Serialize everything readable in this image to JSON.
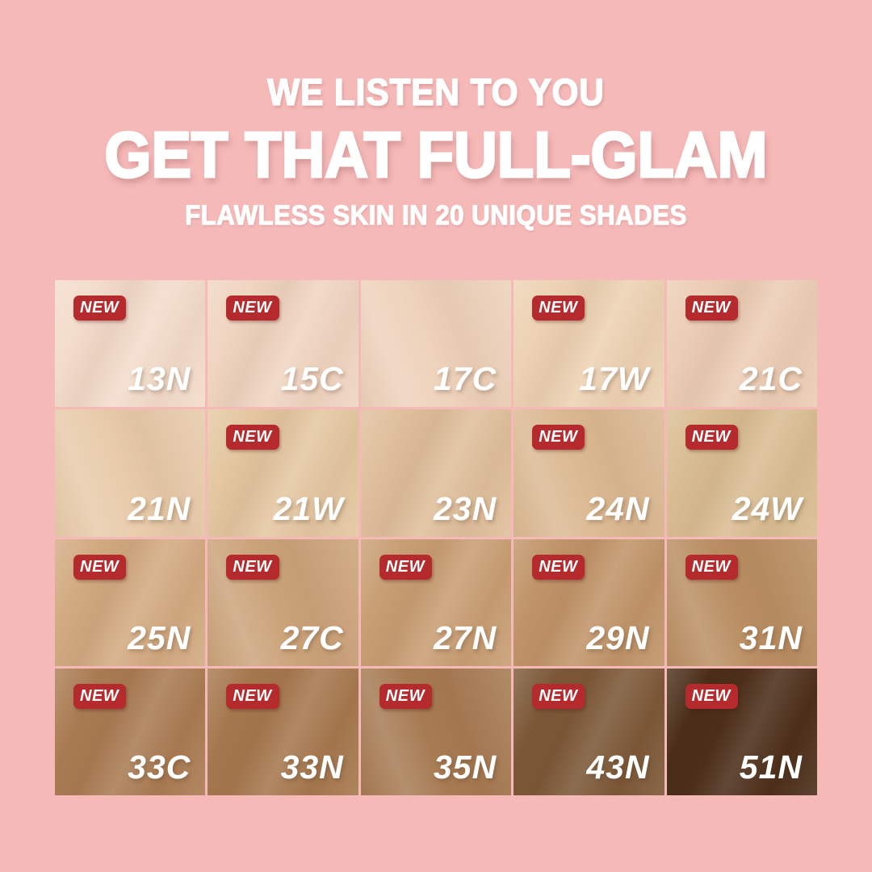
{
  "page": {
    "background_color": "#f5b9b8"
  },
  "header": {
    "line1": "WE LISTEN TO YOU",
    "line2": "GET THAT FULL-GLAM",
    "line3": "FLAWLESS SKIN IN 20 UNIQUE SHADES",
    "text_color": "#ffffff"
  },
  "badge": {
    "label": "NEW",
    "background_color": "#b52a2c",
    "text_color": "#ffffff"
  },
  "shade_grid": {
    "rows": 4,
    "columns": 5,
    "total_shades": 20,
    "shades": [
      {
        "code": "13N",
        "new": true,
        "color": "#f3dccb"
      },
      {
        "code": "15C",
        "new": true,
        "color": "#f0d5c1"
      },
      {
        "code": "17C",
        "new": false,
        "color": "#eed2bb"
      },
      {
        "code": "17W",
        "new": true,
        "color": "#edd2b3"
      },
      {
        "code": "21C",
        "new": true,
        "color": "#eccdb5"
      },
      {
        "code": "21N",
        "new": false,
        "color": "#e8cbaa"
      },
      {
        "code": "21W",
        "new": true,
        "color": "#e4c7a1"
      },
      {
        "code": "23N",
        "new": false,
        "color": "#dfbf9b"
      },
      {
        "code": "24N",
        "new": true,
        "color": "#dbb992"
      },
      {
        "code": "24W",
        "new": true,
        "color": "#d9bd92"
      },
      {
        "code": "25N",
        "new": true,
        "color": "#d2aa81"
      },
      {
        "code": "27C",
        "new": true,
        "color": "#cba37a"
      },
      {
        "code": "27N",
        "new": true,
        "color": "#c89e73"
      },
      {
        "code": "29N",
        "new": true,
        "color": "#c09468"
      },
      {
        "code": "31N",
        "new": true,
        "color": "#b98e62"
      },
      {
        "code": "33C",
        "new": true,
        "color": "#a97b52"
      },
      {
        "code": "33N",
        "new": true,
        "color": "#a5774d"
      },
      {
        "code": "35N",
        "new": true,
        "color": "#a67a52"
      },
      {
        "code": "43N",
        "new": true,
        "color": "#7b5736"
      },
      {
        "code": "51N",
        "new": true,
        "color": "#4a2d18"
      }
    ]
  }
}
